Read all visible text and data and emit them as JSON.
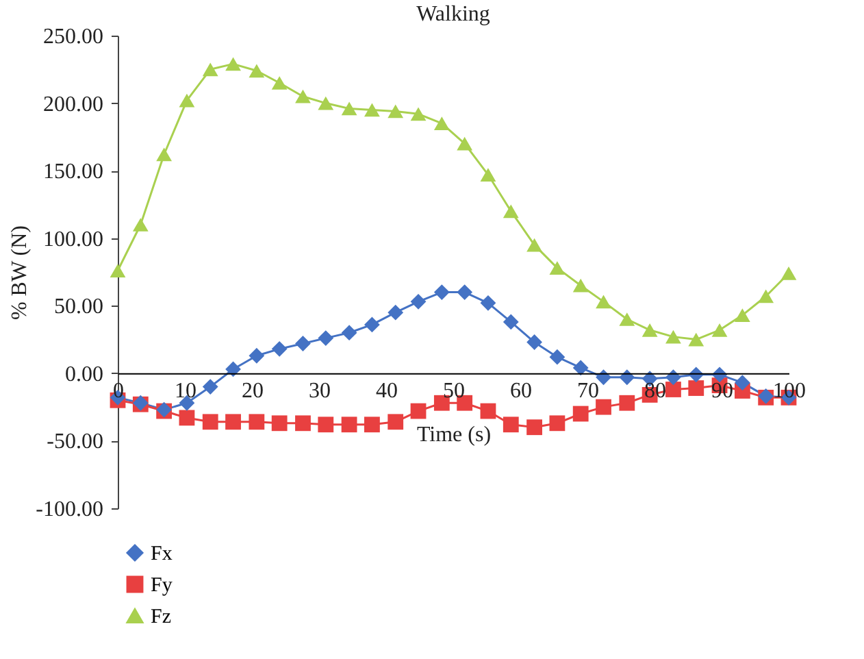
{
  "chart_data": {
    "type": "line",
    "title": "Walking",
    "xlabel": "Time (s)",
    "ylabel": "% BW (N)",
    "x": [
      0,
      3.4,
      6.9,
      10.3,
      13.8,
      17.2,
      20.7,
      24.1,
      27.6,
      31.0,
      34.5,
      37.9,
      41.4,
      44.8,
      48.3,
      51.7,
      55.2,
      58.6,
      62.1,
      65.5,
      69.0,
      72.4,
      75.9,
      79.3,
      82.8,
      86.2,
      89.7,
      93.1,
      96.6,
      100
    ],
    "series": [
      {
        "name": "Fx",
        "color": "#4472c4",
        "marker": "diamond",
        "values": [
          -18,
          -22,
          -27,
          -22,
          -10,
          3,
          13,
          18,
          22,
          26,
          30,
          36,
          45,
          53,
          60,
          60,
          52,
          38,
          23,
          12,
          4,
          -3,
          -3,
          -4,
          -3,
          -1,
          -1,
          -7,
          -17,
          -18
        ]
      },
      {
        "name": "Fy",
        "color": "#e84040",
        "marker": "square",
        "values": [
          -20,
          -23,
          -28,
          -33,
          -36,
          -36,
          -36,
          -37,
          -37,
          -38,
          -38,
          -38,
          -36,
          -28,
          -22,
          -22,
          -28,
          -38,
          -40,
          -37,
          -30,
          -25,
          -22,
          -16,
          -12,
          -11,
          -9,
          -13,
          -18,
          -18
        ]
      },
      {
        "name": "Fz",
        "color": "#a9d04f",
        "marker": "triangle",
        "values": [
          76,
          110,
          162,
          202,
          225,
          229,
          224,
          215,
          205,
          200,
          196,
          195,
          194,
          192,
          185,
          170,
          147,
          120,
          95,
          78,
          65,
          53,
          40,
          32,
          27,
          25,
          32,
          43,
          57,
          74
        ]
      }
    ],
    "xlim": [
      0,
      100
    ],
    "xticks": [
      0,
      10,
      20,
      30,
      40,
      50,
      60,
      70,
      80,
      90,
      100
    ],
    "ylim": [
      -100,
      250
    ],
    "yticks": [
      {
        "value": -100,
        "label": "-100.00"
      },
      {
        "value": -50,
        "label": "-50.00"
      },
      {
        "value": 0,
        "label": "0.00"
      },
      {
        "value": 50,
        "label": "50.00"
      },
      {
        "value": 100,
        "label": "100.00"
      },
      {
        "value": 150,
        "label": "150.00"
      },
      {
        "value": 200,
        "label": "200.00"
      },
      {
        "value": 250,
        "label": "250.00"
      }
    ],
    "grid": false,
    "legend": "bottom left"
  }
}
